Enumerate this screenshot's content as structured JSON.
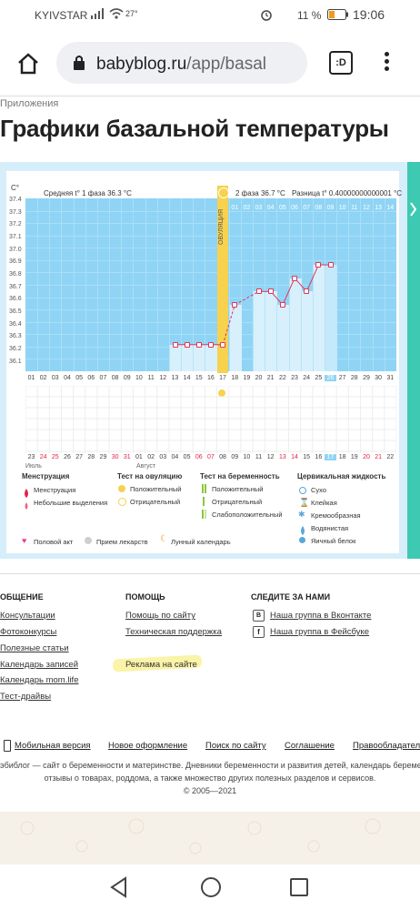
{
  "status": {
    "carrier": "KYIVSTAR",
    "temp": "27°",
    "battery": "11 %",
    "time": "19:06"
  },
  "browser": {
    "url_domain": "babyblog.ru",
    "url_path": "/app/basal",
    "tabs_label": ":D"
  },
  "page": {
    "breadcrumb": "Приложения",
    "title": "Графики базальной температуры"
  },
  "chart": {
    "phase1_label": "Средняя t° 1 фаза 36.3 °С",
    "phase2_label": "2 фаза 36.7 °С",
    "diff_label": "Разница t° 0.40000000000001 °С",
    "ovulation_label": "ОВУЛЯЦИЯ",
    "y_unit": "С°",
    "y_ticks": [
      "37.4",
      "37.3",
      "37.2",
      "37.1",
      "37.0",
      "36.9",
      "36.8",
      "36.7",
      "36.6",
      "36.5",
      "36.4",
      "36.3",
      "36.2",
      "36.1"
    ],
    "cycle_days_after": [
      "01",
      "02",
      "03",
      "04",
      "05",
      "06",
      "07",
      "08",
      "09",
      "10",
      "11",
      "12",
      "13",
      "14"
    ],
    "cycle_days": [
      "01",
      "02",
      "03",
      "04",
      "05",
      "06",
      "07",
      "08",
      "09",
      "10",
      "11",
      "12",
      "13",
      "14",
      "15",
      "16",
      "17",
      "18",
      "19",
      "20",
      "21",
      "22",
      "23",
      "24",
      "25",
      "26",
      "27",
      "28",
      "29",
      "30",
      "31"
    ],
    "dates": [
      "23",
      "24",
      "25",
      "26",
      "27",
      "28",
      "29",
      "30",
      "31",
      "01",
      "02",
      "03",
      "04",
      "05",
      "06",
      "07",
      "08",
      "09",
      "10",
      "11",
      "12",
      "13",
      "14",
      "15",
      "16",
      "17",
      "18",
      "19",
      "20",
      "21",
      "22"
    ],
    "month_1": "Июль",
    "month_2": "Август"
  },
  "chart_data": {
    "type": "line",
    "title": "",
    "x": [
      13,
      14,
      15,
      16,
      17,
      18,
      19,
      20,
      21,
      22,
      23,
      24,
      25,
      26
    ],
    "values": [
      36.3,
      36.3,
      36.3,
      36.3,
      36.3,
      36.6,
      null,
      36.7,
      36.7,
      36.6,
      36.8,
      36.7,
      36.9,
      36.9
    ],
    "ylim": [
      36.1,
      37.4
    ],
    "highlight_day": 26
  },
  "legend": {
    "menstruation": {
      "title": "Менструация",
      "items": [
        "Менструация",
        "Небольшие выделения"
      ]
    },
    "ovulation_test": {
      "title": "Тест на овуляцию",
      "items": [
        "Положительный",
        "Отрицательный"
      ]
    },
    "pregnancy_test": {
      "title": "Тест на беременность",
      "items": [
        "Положительный",
        "Отрицательный",
        "Слабоположительный"
      ]
    },
    "cervical": {
      "title": "Цервикальная жидкость",
      "items": [
        "Сухо",
        "Клейкая",
        "Кремообразная",
        "Водянистая",
        "Яичный белок"
      ]
    },
    "bottom": [
      "Половой акт",
      "Прием лекарств",
      "Лунный календарь"
    ]
  },
  "footer": {
    "col1_title": "ОБЩЕНИЕ",
    "col1_links": [
      "Консультации",
      "Фотоконкурсы",
      "Полезные статьи",
      "Календарь записей",
      "Календарь mom.life",
      "Тест-драйвы"
    ],
    "col2_title": "ПОМОЩЬ",
    "col2_links": [
      "Помощь по сайту",
      "Техническая поддержка",
      "Реклама на сайте"
    ],
    "col3_title": "СЛЕДИТЕ ЗА НАМИ",
    "col3_links": [
      "Наша группа в Вконтакте",
      "Наша группа в Фейсбуке"
    ],
    "bottom_links": [
      "Мобильная версия",
      "Новое оформление",
      "Поиск по сайту",
      "Соглашение",
      "Правообладателя"
    ],
    "desc1": "эбиблог — сайт о беременности и материнстве. Дневники беременности и развития детей, календарь беремен",
    "desc2": "отзывы о товарах, роддома, а также множество других полезных разделов и сервисов.",
    "copyright": "© 2005—2021"
  },
  "colors": {
    "plot_bg": "#8fd4f5",
    "bar": "#d7f0fc",
    "line": "#e0355b",
    "ovulation": "#f6d24e",
    "accent": "#3ec9b2"
  },
  "icons": [
    "signal-icon",
    "wifi-icon",
    "alarm-icon",
    "battery-icon",
    "home-icon",
    "lock-icon",
    "tabs-icon",
    "menu-icon",
    "back-nav-icon",
    "home-nav-icon",
    "recents-nav-icon"
  ]
}
